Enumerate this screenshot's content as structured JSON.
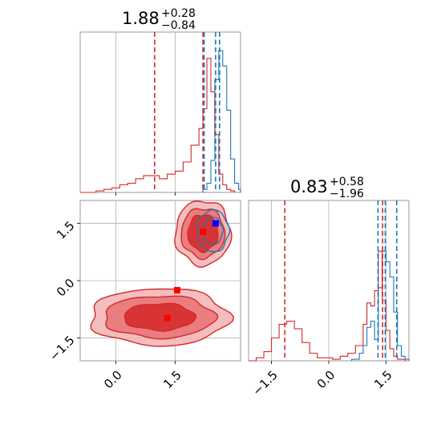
{
  "chart_data": [
    {
      "type": "histogram",
      "panel": "marginal-x",
      "title": {
        "value": "1.88",
        "plus": "+0.28",
        "minus": "−0.84"
      },
      "xlim": [
        -0.9,
        3.15
      ],
      "x_ticks": [
        0.0,
        1.5
      ],
      "series": [
        {
          "color": "#1f77b4",
          "bin_edges": [
            2.2,
            2.3,
            2.4,
            2.5,
            2.6,
            2.7,
            2.8,
            2.9,
            3.0,
            3.1,
            3.15
          ],
          "counts": [
            0.02,
            0.06,
            0.21,
            0.74,
            0.93,
            0.83,
            0.54,
            0.22,
            0.06,
            0.02
          ]
        },
        {
          "color": "#d62728",
          "bin_edges": [
            -0.9,
            -0.7,
            -0.5,
            -0.3,
            -0.1,
            0.1,
            0.3,
            0.5,
            0.7,
            0.9,
            1.1,
            1.3,
            1.5,
            1.7,
            1.9,
            2.1,
            2.2,
            2.3,
            2.4,
            2.5,
            2.6,
            2.7,
            2.8,
            2.9,
            3.0
          ],
          "counts": [
            0.0,
            0.0,
            0.01,
            0.02,
            0.03,
            0.05,
            0.06,
            0.09,
            0.11,
            0.11,
            0.09,
            0.12,
            0.14,
            0.2,
            0.31,
            0.42,
            0.55,
            0.88,
            0.66,
            0.38,
            0.12,
            0.05,
            0.02,
            0.01
          ]
        }
      ],
      "vlines": [
        {
          "x": 0.98,
          "color": "#d62728"
        },
        {
          "x": 2.2,
          "color": "#d62728"
        },
        {
          "x": 2.23,
          "color": "#1f77b4"
        },
        {
          "x": 2.52,
          "color": "#1f77b4"
        },
        {
          "x": 2.62,
          "color": "#1f77b4"
        }
      ]
    },
    {
      "type": "contour",
      "panel": "joint",
      "xlim": [
        -0.9,
        3.15
      ],
      "ylim": [
        -2.1,
        2.1
      ],
      "x_ticks": [
        0.0,
        1.5
      ],
      "x_tick_labels": [
        "0.0",
        "1.5"
      ],
      "y_ticks": [
        -1.5,
        0.0,
        1.5
      ],
      "y_tick_labels": [
        "−1.5",
        "0.0",
        "1.5"
      ],
      "contours": [
        {
          "color": "#d62728",
          "center": [
            2.2,
            1.25
          ],
          "levels": [
            [
              0.7,
              0.85
            ],
            [
              0.55,
              0.65
            ],
            [
              0.38,
              0.48
            ]
          ]
        },
        {
          "color": "#d62728",
          "center": [
            1.1,
            -0.95
          ],
          "levels": [
            [
              1.75,
              0.75
            ],
            [
              1.4,
              0.55
            ],
            [
              0.9,
              0.35
            ]
          ]
        },
        {
          "color": "#1f77b4",
          "center": [
            2.45,
            1.3
          ],
          "levels": [
            [
              0.4,
              0.55
            ],
            [
              0.25,
              0.35
            ]
          ]
        }
      ],
      "markers": [
        {
          "x": 2.52,
          "y": 1.5,
          "color": "#0000ff"
        },
        {
          "x": 2.2,
          "y": 1.28,
          "color": "#ff0000"
        },
        {
          "x": 1.55,
          "y": -0.25,
          "color": "#ff0000"
        },
        {
          "x": 1.3,
          "y": -0.98,
          "color": "#ff0000"
        }
      ]
    },
    {
      "type": "histogram",
      "panel": "marginal-y",
      "title": {
        "value": "0.83",
        "plus": "+0.58",
        "minus": "−1.96"
      },
      "xlim": [
        -2.1,
        2.1
      ],
      "x_ticks": [
        -1.5,
        0.0,
        1.5
      ],
      "x_tick_labels": [
        "−1.5",
        "0.0",
        "1.5"
      ],
      "series": [
        {
          "color": "#1f77b4",
          "bin_edges": [
            0.6,
            0.8,
            0.9,
            1.0,
            1.1,
            1.2,
            1.3,
            1.4,
            1.5,
            1.6,
            1.7,
            1.8,
            1.9,
            2.0,
            2.1
          ],
          "counts": [
            0.01,
            0.05,
            0.1,
            0.22,
            0.26,
            0.14,
            0.48,
            0.72,
            0.65,
            0.55,
            0.32,
            0.1,
            0.03,
            0.01
          ]
        },
        {
          "color": "#d62728",
          "bin_edges": [
            -2.1,
            -1.9,
            -1.7,
            -1.5,
            -1.3,
            -1.1,
            -0.9,
            -0.7,
            -0.5,
            -0.3,
            -0.1,
            0.1,
            0.3,
            0.5,
            0.7,
            0.9,
            1.0,
            1.1,
            1.2,
            1.3,
            1.4,
            1.5,
            1.6,
            1.7,
            1.8,
            2.0
          ],
          "counts": [
            0.0,
            0.02,
            0.06,
            0.15,
            0.24,
            0.26,
            0.21,
            0.12,
            0.05,
            0.02,
            0.02,
            0.01,
            0.03,
            0.05,
            0.1,
            0.24,
            0.38,
            0.36,
            0.46,
            0.72,
            0.4,
            0.2,
            0.08,
            0.03,
            0.01
          ]
        }
      ],
      "vlines": [
        {
          "x": -1.15,
          "color": "#d62728"
        },
        {
          "x": 1.29,
          "color": "#1f77b4"
        },
        {
          "x": 1.41,
          "color": "#d62728"
        },
        {
          "x": 1.48,
          "color": "#1f77b4"
        },
        {
          "x": 1.78,
          "color": "#1f77b4"
        }
      ]
    }
  ]
}
